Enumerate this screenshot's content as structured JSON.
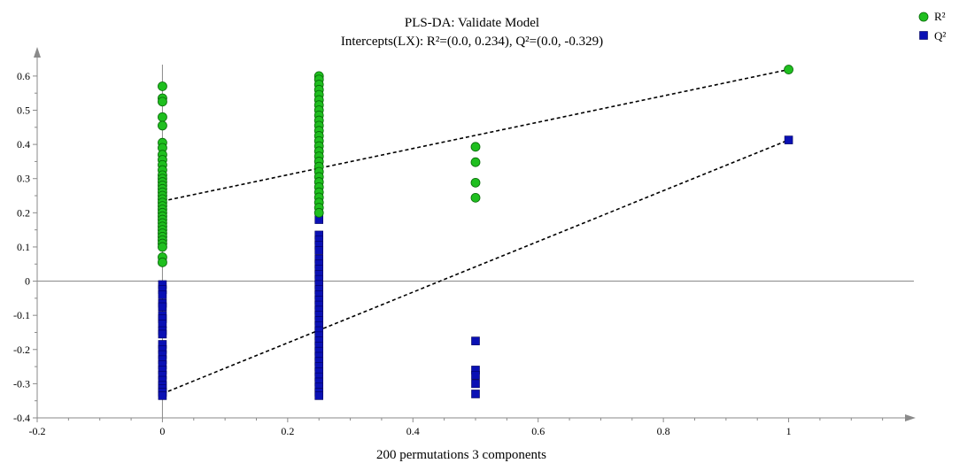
{
  "chart_data": {
    "type": "scatter",
    "title": "PLS-DA: Validate Model",
    "subtitle": "Intercepts(LX): R²=(0.0, 0.234), Q²=(0.0, -0.329)",
    "xlabel": "200 permutations 3 components",
    "ylabel": "",
    "xlim": [
      -0.2,
      1.2
    ],
    "ylim": [
      -0.4,
      0.68
    ],
    "x_ticks": [
      "-0.2",
      "0",
      "0.2",
      "0.4",
      "0.6",
      "0.8",
      "1"
    ],
    "y_ticks": [
      "-0.4",
      "-0.3",
      "-0.2",
      "-0.1",
      "0",
      "0.1",
      "0.2",
      "0.3",
      "0.4",
      "0.5",
      "0.6"
    ],
    "x_tick_values": [
      -0.2,
      0,
      0.2,
      0.4,
      0.6,
      0.8,
      1
    ],
    "y_tick_values": [
      -0.4,
      -0.3,
      -0.2,
      -0.1,
      0,
      0.1,
      0.2,
      0.3,
      0.4,
      0.5,
      0.6
    ],
    "grid": false,
    "legend_position": "top-right",
    "series": [
      {
        "name": "R²",
        "marker": "circle",
        "color": "#1fbf1f",
        "points": [
          [
            0,
            0.57
          ],
          [
            0,
            0.535
          ],
          [
            0,
            0.525
          ],
          [
            0,
            0.48
          ],
          [
            0,
            0.455
          ],
          [
            0,
            0.405
          ],
          [
            0,
            0.39
          ],
          [
            0,
            0.37
          ],
          [
            0,
            0.355
          ],
          [
            0,
            0.34
          ],
          [
            0,
            0.325
          ],
          [
            0,
            0.31
          ],
          [
            0,
            0.3
          ],
          [
            0,
            0.29
          ],
          [
            0,
            0.28
          ],
          [
            0,
            0.27
          ],
          [
            0,
            0.26
          ],
          [
            0,
            0.25
          ],
          [
            0,
            0.24
          ],
          [
            0,
            0.23
          ],
          [
            0,
            0.22
          ],
          [
            0,
            0.21
          ],
          [
            0,
            0.2
          ],
          [
            0,
            0.19
          ],
          [
            0,
            0.18
          ],
          [
            0,
            0.17
          ],
          [
            0,
            0.16
          ],
          [
            0,
            0.15
          ],
          [
            0,
            0.14
          ],
          [
            0,
            0.13
          ],
          [
            0,
            0.12
          ],
          [
            0,
            0.11
          ],
          [
            0,
            0.1
          ],
          [
            0,
            0.07
          ],
          [
            0,
            0.055
          ],
          [
            0.25,
            0.6
          ],
          [
            0.25,
            0.59
          ],
          [
            0.25,
            0.575
          ],
          [
            0.25,
            0.56
          ],
          [
            0.25,
            0.545
          ],
          [
            0.25,
            0.53
          ],
          [
            0.25,
            0.515
          ],
          [
            0.25,
            0.5
          ],
          [
            0.25,
            0.485
          ],
          [
            0.25,
            0.47
          ],
          [
            0.25,
            0.455
          ],
          [
            0.25,
            0.44
          ],
          [
            0.25,
            0.425
          ],
          [
            0.25,
            0.41
          ],
          [
            0.25,
            0.395
          ],
          [
            0.25,
            0.38
          ],
          [
            0.25,
            0.365
          ],
          [
            0.25,
            0.35
          ],
          [
            0.25,
            0.335
          ],
          [
            0.25,
            0.32
          ],
          [
            0.25,
            0.305
          ],
          [
            0.25,
            0.29
          ],
          [
            0.25,
            0.275
          ],
          [
            0.25,
            0.26
          ],
          [
            0.25,
            0.245
          ],
          [
            0.25,
            0.23
          ],
          [
            0.25,
            0.215
          ],
          [
            0.25,
            0.2
          ],
          [
            0.5,
            0.393
          ],
          [
            0.5,
            0.348
          ],
          [
            0.5,
            0.288
          ],
          [
            0.5,
            0.244
          ],
          [
            1,
            0.619
          ]
        ]
      },
      {
        "name": "Q²",
        "marker": "square",
        "color": "#0a10b4",
        "points": [
          [
            0,
            0.06
          ],
          [
            0,
            -0.01
          ],
          [
            0,
            -0.025
          ],
          [
            0,
            -0.04
          ],
          [
            0,
            -0.065
          ],
          [
            0,
            -0.075
          ],
          [
            0,
            -0.1
          ],
          [
            0,
            -0.11
          ],
          [
            0,
            -0.125
          ],
          [
            0,
            -0.145
          ],
          [
            0,
            -0.155
          ],
          [
            0,
            -0.185
          ],
          [
            0,
            -0.2
          ],
          [
            0,
            -0.215
          ],
          [
            0,
            -0.23
          ],
          [
            0,
            -0.245
          ],
          [
            0,
            -0.26
          ],
          [
            0,
            -0.275
          ],
          [
            0,
            -0.29
          ],
          [
            0,
            -0.305
          ],
          [
            0,
            -0.315
          ],
          [
            0,
            -0.325
          ],
          [
            0,
            -0.335
          ],
          [
            0.25,
            0.35
          ],
          [
            0.25,
            0.18
          ],
          [
            0.25,
            0.135
          ],
          [
            0.25,
            0.12
          ],
          [
            0.25,
            0.105
          ],
          [
            0.25,
            0.09
          ],
          [
            0.25,
            0.065
          ],
          [
            0.25,
            0.05
          ],
          [
            0.25,
            0.035
          ],
          [
            0.25,
            0.02
          ],
          [
            0.25,
            0.005
          ],
          [
            0.25,
            -0.01
          ],
          [
            0.25,
            -0.025
          ],
          [
            0.25,
            -0.04
          ],
          [
            0.25,
            -0.055
          ],
          [
            0.25,
            -0.07
          ],
          [
            0.25,
            -0.085
          ],
          [
            0.25,
            -0.1
          ],
          [
            0.25,
            -0.115
          ],
          [
            0.25,
            -0.13
          ],
          [
            0.25,
            -0.145
          ],
          [
            0.25,
            -0.16
          ],
          [
            0.25,
            -0.175
          ],
          [
            0.25,
            -0.19
          ],
          [
            0.25,
            -0.205
          ],
          [
            0.25,
            -0.22
          ],
          [
            0.25,
            -0.235
          ],
          [
            0.25,
            -0.25
          ],
          [
            0.25,
            -0.265
          ],
          [
            0.25,
            -0.28
          ],
          [
            0.25,
            -0.295
          ],
          [
            0.25,
            -0.31
          ],
          [
            0.25,
            -0.325
          ],
          [
            0.25,
            -0.335
          ],
          [
            0.5,
            -0.175
          ],
          [
            0.5,
            -0.26
          ],
          [
            0.5,
            -0.275
          ],
          [
            0.5,
            -0.3
          ],
          [
            0.5,
            -0.33
          ],
          [
            1,
            0.413
          ]
        ]
      }
    ],
    "regression_lines": [
      {
        "series": "R²",
        "from": [
          0,
          0.234
        ],
        "to": [
          1,
          0.619
        ]
      },
      {
        "series": "Q²",
        "from": [
          0,
          -0.329
        ],
        "to": [
          1,
          0.413
        ]
      }
    ]
  }
}
